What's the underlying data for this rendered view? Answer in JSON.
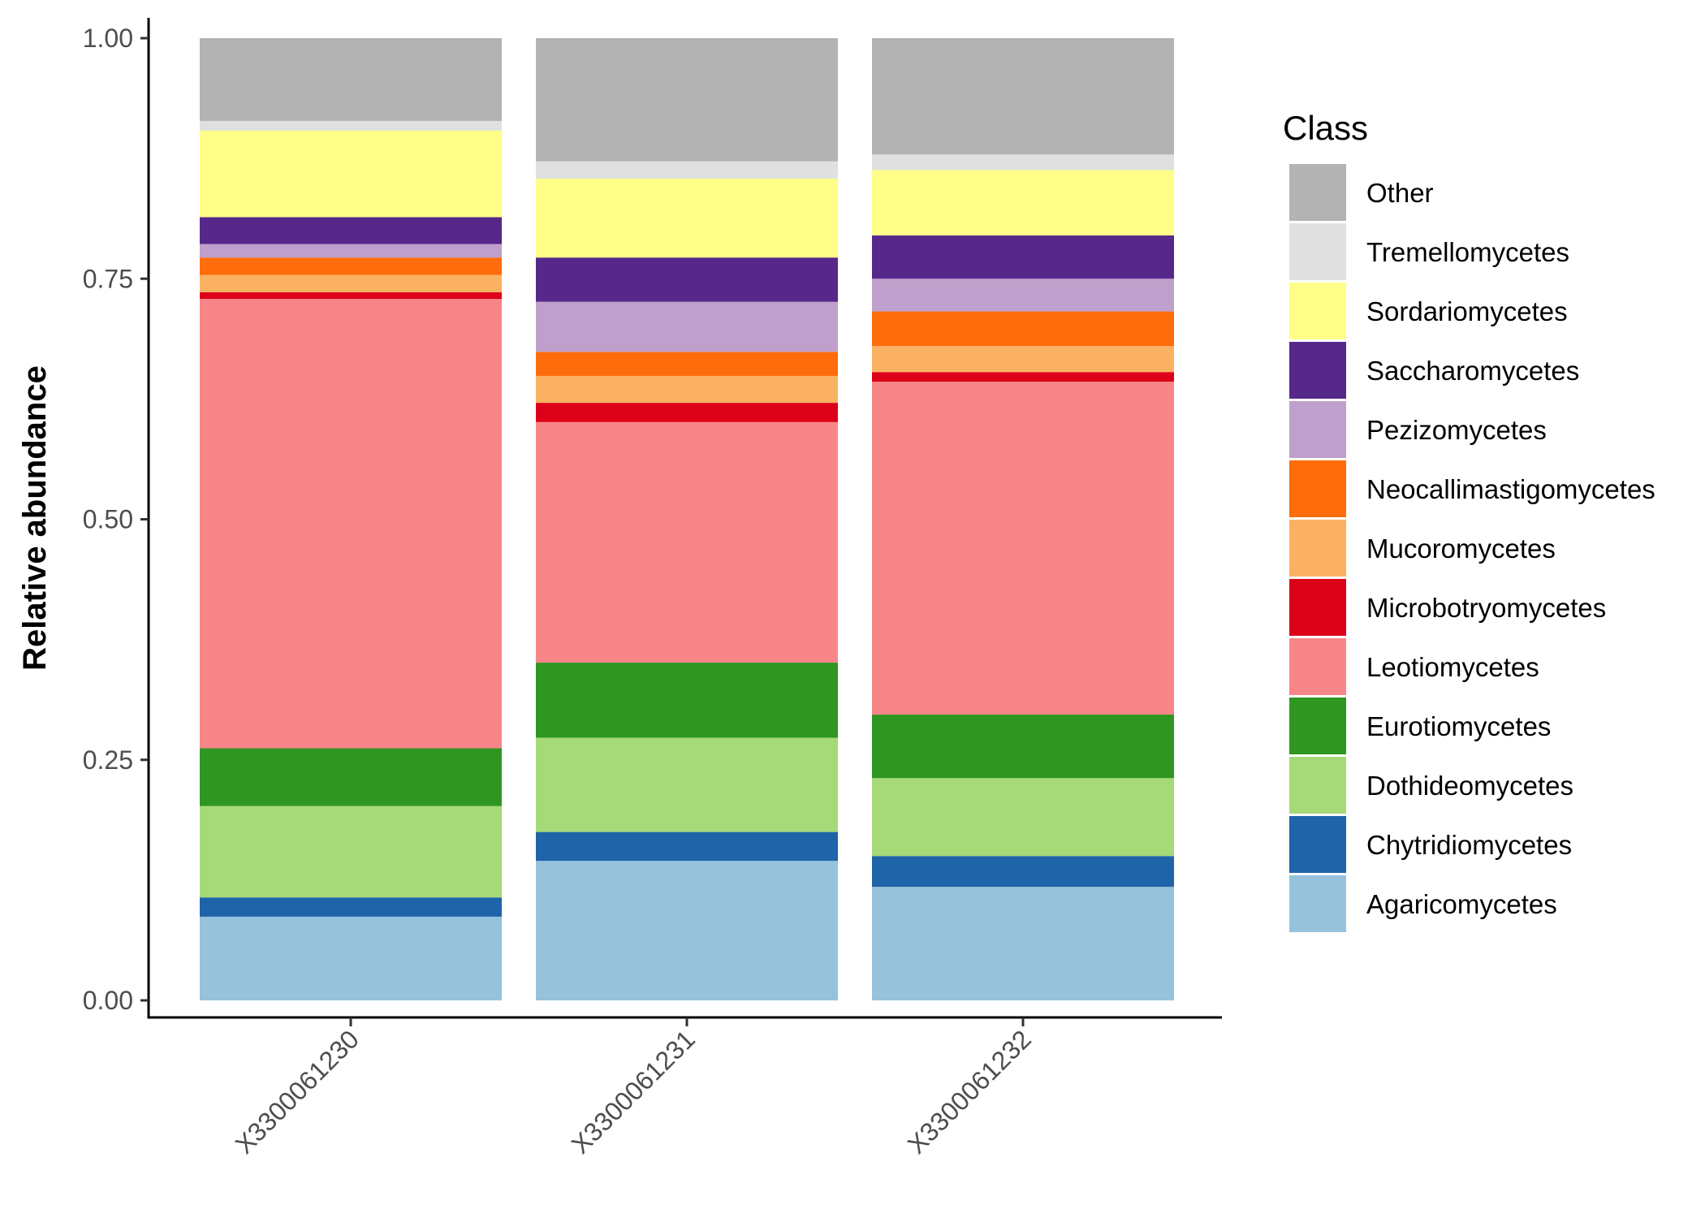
{
  "chart_data": {
    "type": "bar",
    "stacked": true,
    "title": "",
    "xlabel": "",
    "ylabel": "Relative abundance",
    "ylim": [
      0,
      1
    ],
    "yticks": [
      "0.00",
      "0.25",
      "0.50",
      "0.75",
      "1.00"
    ],
    "categories": [
      "X3300061230",
      "X3300061231",
      "X3300061232"
    ],
    "legend": {
      "title": "Class",
      "position": "right"
    },
    "series": [
      {
        "name": "Agaricomycetes",
        "color": "#96C2DB",
        "values": [
          0.087,
          0.145,
          0.118
        ]
      },
      {
        "name": "Chytridiomycetes",
        "color": "#1F63A8",
        "values": [
          0.02,
          0.03,
          0.032
        ]
      },
      {
        "name": "Dothideomycetes",
        "color": "#A6D978",
        "values": [
          0.095,
          0.098,
          0.081
        ]
      },
      {
        "name": "Eurotiomycetes",
        "color": "#2E9621",
        "values": [
          0.06,
          0.078,
          0.066
        ]
      },
      {
        "name": "Leotiomycetes",
        "color": "#F88688",
        "values": [
          0.467,
          0.25,
          0.346
        ]
      },
      {
        "name": "Microbotryomycetes",
        "color": "#DC0019",
        "values": [
          0.007,
          0.02,
          0.01
        ]
      },
      {
        "name": "Mucoromycetes",
        "color": "#FAB262",
        "values": [
          0.018,
          0.028,
          0.027
        ]
      },
      {
        "name": "Neocallimastigomycetes",
        "color": "#FE6C0B",
        "values": [
          0.018,
          0.025,
          0.036
        ]
      },
      {
        "name": "Pezizomycetes",
        "color": "#BFA0CC",
        "values": [
          0.014,
          0.052,
          0.034
        ]
      },
      {
        "name": "Saccharomycetes",
        "color": "#56288A",
        "values": [
          0.028,
          0.046,
          0.045
        ]
      },
      {
        "name": "Sordariomycetes",
        "color": "#FEFE88",
        "values": [
          0.09,
          0.082,
          0.068
        ]
      },
      {
        "name": "Tremellomycetes",
        "color": "#E0E0E0",
        "values": [
          0.01,
          0.018,
          0.016
        ]
      },
      {
        "name": "Other",
        "color": "#B3B3B3",
        "values": [
          0.086,
          0.128,
          0.121
        ]
      }
    ]
  }
}
